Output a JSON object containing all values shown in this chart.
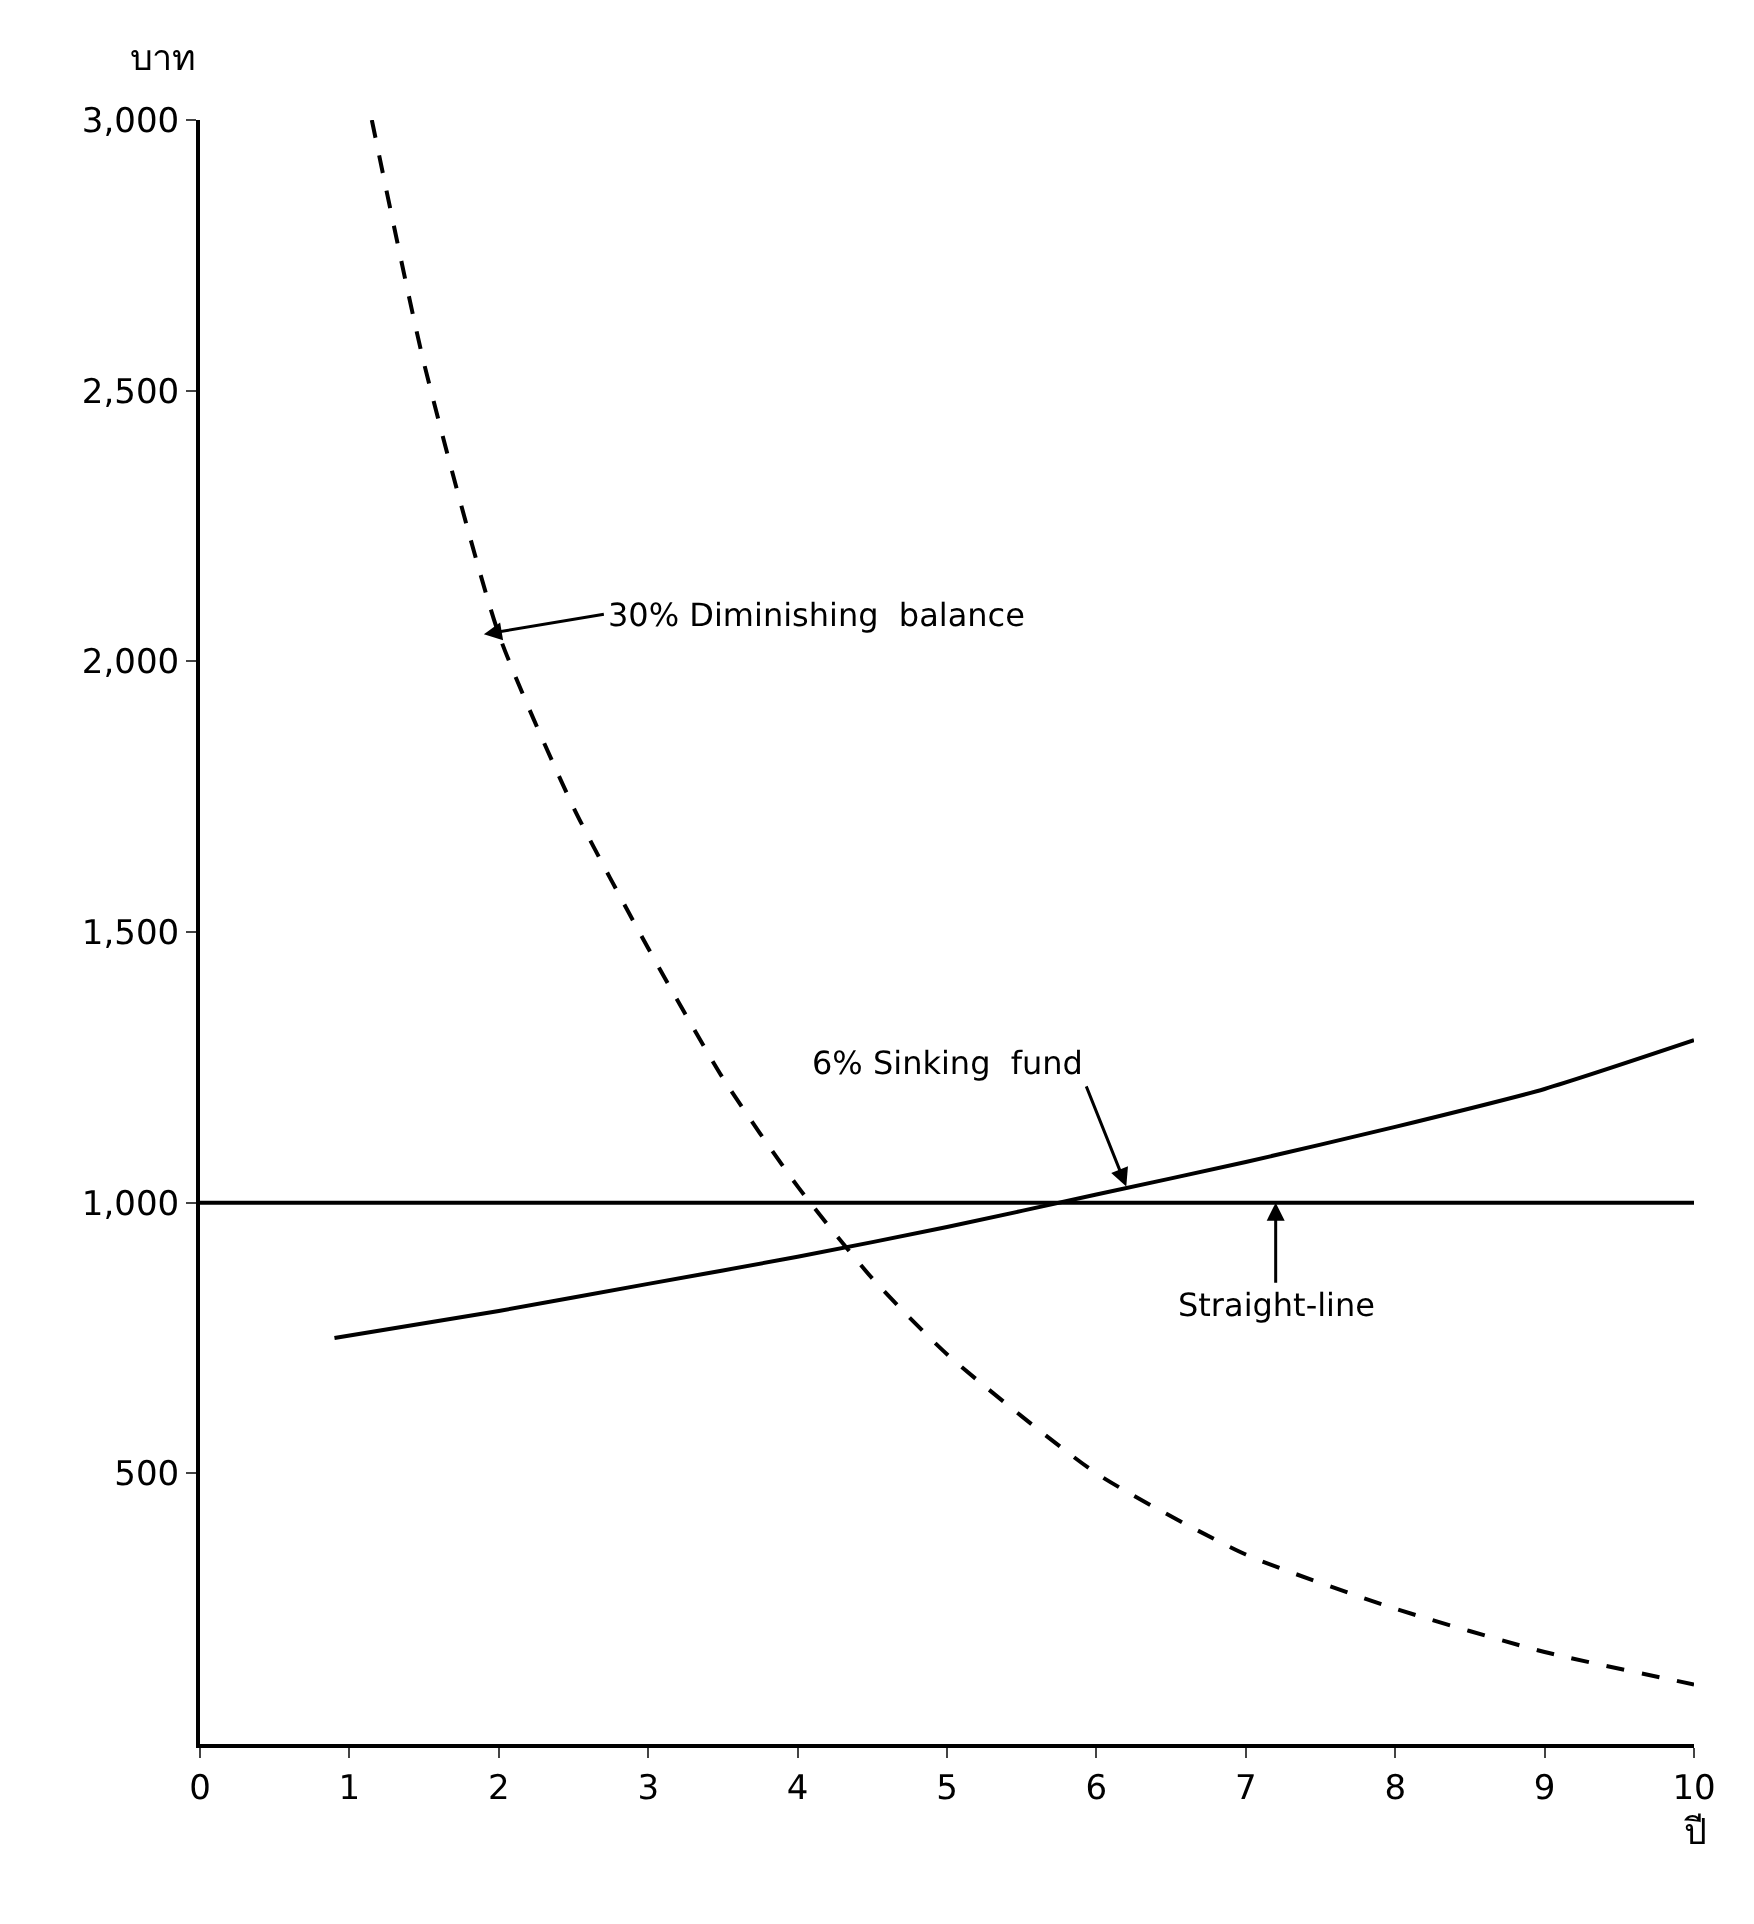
{
  "chart_data": {
    "type": "line",
    "xlabel": "ปี",
    "ylabel": "บาท",
    "xlim": [
      0,
      10
    ],
    "ylim": [
      0,
      3000
    ],
    "xticks": [
      0,
      1,
      2,
      3,
      4,
      5,
      6,
      7,
      8,
      9,
      10
    ],
    "yticks": [
      {
        "value": 500,
        "label": "500"
      },
      {
        "value": 1000,
        "label": "1,000"
      },
      {
        "value": 1500,
        "label": "1,500"
      },
      {
        "value": 2000,
        "label": "2,000"
      },
      {
        "value": 2500,
        "label": "2,500"
      },
      {
        "value": 3000,
        "label": "3,000"
      }
    ],
    "series": [
      {
        "color": "#000000",
        "line_style": "dashed",
        "x": [
          1.15,
          1.5,
          2,
          2.5,
          3,
          3.5,
          4,
          4.5,
          5,
          6,
          7,
          8,
          9,
          10
        ],
        "values": [
          3000,
          2550,
          2050,
          1730,
          1470,
          1230,
          1030,
          860,
          720,
          500,
          350,
          250,
          170,
          110
        ]
      },
      {
        "color": "#000000",
        "line_style": "solid",
        "x": [
          0.9,
          2,
          3,
          4,
          5,
          6,
          7,
          8,
          9,
          10
        ],
        "values": [
          750,
          800,
          850,
          900,
          955,
          1015,
          1075,
          1140,
          1210,
          1300
        ]
      },
      {
        "color": "#000000",
        "line_style": "solid",
        "x": [
          0,
          10
        ],
        "values": [
          1000,
          1000
        ]
      }
    ],
    "annotations": [
      {
        "text": "30% Diminishing  balance",
        "x": 1.9,
        "y": 2050
      },
      {
        "text": "6% Sinking  fund",
        "x": 6.2,
        "y": 1030
      },
      {
        "text": "Straight-line",
        "x": 7.2,
        "y": 1000
      }
    ]
  }
}
